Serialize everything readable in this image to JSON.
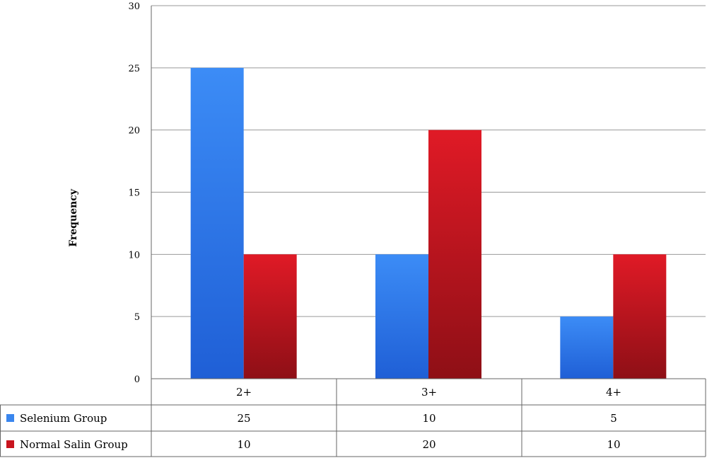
{
  "chart_data": {
    "type": "bar",
    "title": "",
    "xlabel": "",
    "ylabel": "Frequency",
    "ylim": [
      0,
      30
    ],
    "yticks": [
      0,
      5,
      10,
      15,
      20,
      25,
      30
    ],
    "grid": true,
    "legend": "data-table-below",
    "categories": [
      "2+",
      "3+",
      "4+"
    ],
    "series": [
      {
        "name": "Selenium Group",
        "values": [
          25,
          10,
          5
        ],
        "color": "#3a86ee"
      },
      {
        "name": "Normal Salin Group",
        "values": [
          10,
          20,
          10
        ],
        "color": "#c8141e"
      }
    ]
  }
}
